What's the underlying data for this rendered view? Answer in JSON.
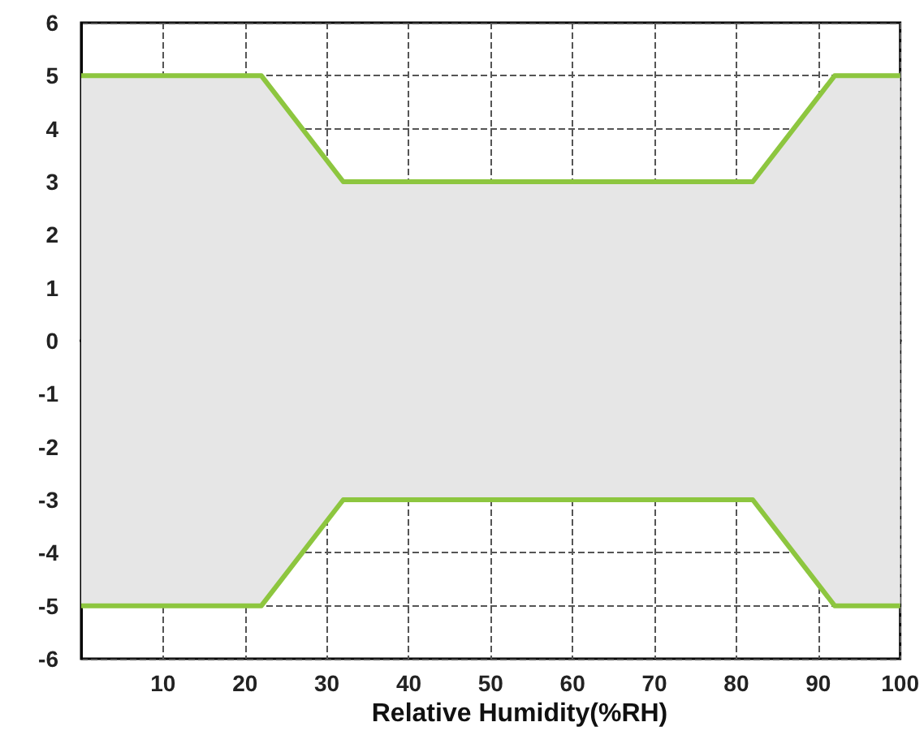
{
  "chart_data": {
    "type": "area",
    "xlabel": "Relative Humidity(%RH)",
    "series": [
      {
        "color": "#8dc63f",
        "x": [
          0,
          22,
          32,
          82,
          92,
          100
        ],
        "values": [
          5,
          5,
          3,
          3,
          5,
          5
        ]
      },
      {
        "color": "#8dc63f",
        "x": [
          0,
          22,
          32,
          82,
          92,
          100
        ],
        "values": [
          -5,
          -5,
          -3,
          -3,
          -5,
          -5
        ]
      }
    ],
    "xlim": [
      0,
      100
    ],
    "xticks": [
      10,
      20,
      30,
      40,
      50,
      60,
      70,
      80,
      90,
      100
    ],
    "ylim": [
      -6,
      6
    ],
    "yticks": [
      -6,
      -5,
      -4,
      -3,
      -2,
      -1,
      0,
      1,
      2,
      3,
      4,
      5,
      6
    ],
    "grid": true,
    "marker": "none",
    "line_style": "solid"
  }
}
